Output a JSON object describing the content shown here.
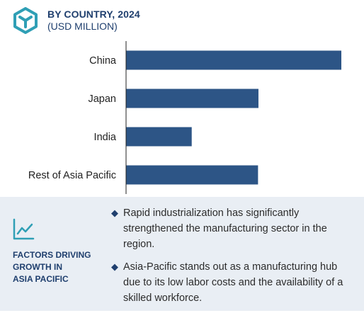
{
  "header": {
    "title": "BY COUNTRY, 2024",
    "subtitle": "(USD MILLION)",
    "logo_icon": "cube-logo-icon"
  },
  "colors": {
    "bar": "#2d5586",
    "axis": "#222222",
    "accent": "#1f3f6e",
    "panel_bg": "#e9eef4"
  },
  "chart_data": {
    "type": "bar",
    "orientation": "horizontal",
    "title": "BY COUNTRY, 2024",
    "subtitle": "(USD MILLION)",
    "categories": [
      "China",
      "Japan",
      "India",
      "Rest of Asia Pacific"
    ],
    "values": [
      100,
      61.5,
      30.5,
      61.3
    ],
    "xlabel": "",
    "ylabel": "",
    "xlim": [
      0,
      100
    ],
    "grid": false,
    "legend": "none",
    "value_labels": false
  },
  "factors": {
    "icon": "line-chart-icon",
    "title": "FACTORS DRIVING GROWTH IN ASIA PACIFIC",
    "title_lines": [
      "FACTORS DRIVING",
      "GROWTH IN",
      "ASIA PACIFIC"
    ],
    "points": [
      "Rapid industrialization has significantly strengthened the manufacturing sector in the region.",
      "Asia-Pacific stands out as a manufacturing hub due to its low labor costs and the availability of a skilled workforce."
    ]
  }
}
